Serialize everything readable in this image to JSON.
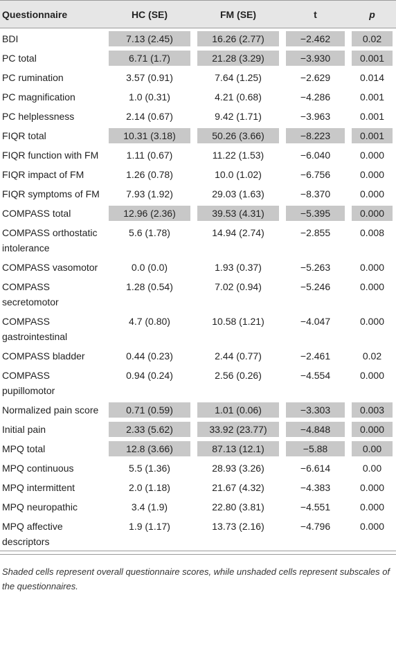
{
  "headers": [
    "Questionnaire",
    "HC (SE)",
    "FM (SE)",
    "t",
    "p"
  ],
  "rows": [
    {
      "q": "BDI",
      "hc": "7.13 (2.45)",
      "fm": "16.26 (2.77)",
      "t": "−2.462",
      "p": "0.02",
      "shaded": true
    },
    {
      "q": "PC total",
      "hc": "6.71 (1.7)",
      "fm": "21.28 (3.29)",
      "t": "−3.930",
      "p": "0.001",
      "shaded": true
    },
    {
      "q": "PC rumination",
      "hc": "3.57 (0.91)",
      "fm": "7.64 (1.25)",
      "t": "−2.629",
      "p": "0.014",
      "shaded": false
    },
    {
      "q": "PC magnification",
      "hc": "1.0 (0.31)",
      "fm": "4.21 (0.68)",
      "t": "−4.286",
      "p": "0.001",
      "shaded": false
    },
    {
      "q": "PC helplessness",
      "hc": "2.14 (0.67)",
      "fm": "9.42 (1.71)",
      "t": "−3.963",
      "p": "0.001",
      "shaded": false
    },
    {
      "q": "FIQR total",
      "hc": "10.31 (3.18)",
      "fm": "50.26 (3.66)",
      "t": "−8.223",
      "p": "0.001",
      "shaded": true
    },
    {
      "q": "FIQR function with FM",
      "hc": "1.11 (0.67)",
      "fm": "11.22 (1.53)",
      "t": "−6.040",
      "p": "0.000",
      "shaded": false
    },
    {
      "q": "FIQR impact of FM",
      "hc": "1.26 (0.78)",
      "fm": "10.0 (1.02)",
      "t": "−6.756",
      "p": "0.000",
      "shaded": false
    },
    {
      "q": "FIQR symptoms of FM",
      "hc": "7.93 (1.92)",
      "fm": "29.03 (1.63)",
      "t": "−8.370",
      "p": "0.000",
      "shaded": false
    },
    {
      "q": "COMPASS total",
      "hc": "12.96 (2.36)",
      "fm": "39.53 (4.31)",
      "t": "−5.395",
      "p": "0.000",
      "shaded": true
    },
    {
      "q": "COMPASS orthostatic intolerance",
      "hc": "5.6 (1.78)",
      "fm": "14.94 (2.74)",
      "t": "−2.855",
      "p": "0.008",
      "shaded": false
    },
    {
      "q": "COMPASS vasomotor",
      "hc": "0.0 (0.0)",
      "fm": "1.93 (0.37)",
      "t": "−5.263",
      "p": "0.000",
      "shaded": false
    },
    {
      "q": "COMPASS secretomotor",
      "hc": "1.28 (0.54)",
      "fm": "7.02 (0.94)",
      "t": "−5.246",
      "p": "0.000",
      "shaded": false
    },
    {
      "q": "COMPASS gastrointestinal",
      "hc": "4.7 (0.80)",
      "fm": "10.58 (1.21)",
      "t": "−4.047",
      "p": "0.000",
      "shaded": false
    },
    {
      "q": "COMPASS bladder",
      "hc": "0.44 (0.23)",
      "fm": "2.44 (0.77)",
      "t": "−2.461",
      "p": "0.02",
      "shaded": false
    },
    {
      "q": "COMPASS pupillomotor",
      "hc": "0.94 (0.24)",
      "fm": "2.56 (0.26)",
      "t": "−4.554",
      "p": "0.000",
      "shaded": false
    },
    {
      "q": "Normalized pain score",
      "hc": "0.71 (0.59)",
      "fm": "1.01 (0.06)",
      "t": "−3.303",
      "p": "0.003",
      "shaded": true
    },
    {
      "q": "Initial pain",
      "hc": "2.33 (5.62)",
      "fm": "33.92 (23.77)",
      "t": "−4.848",
      "p": "0.000",
      "shaded": true
    },
    {
      "q": "MPQ total",
      "hc": "12.8 (3.66)",
      "fm": "87.13 (12.1)",
      "t": "−5.88",
      "p": "0.00",
      "shaded": true
    },
    {
      "q": "MPQ continuous",
      "hc": "5.5 (1.36)",
      "fm": "28.93 (3.26)",
      "t": "−6.614",
      "p": "0.00",
      "shaded": false
    },
    {
      "q": "MPQ intermittent",
      "hc": "2.0 (1.18)",
      "fm": "21.67 (4.32)",
      "t": "−4.383",
      "p": "0.000",
      "shaded": false
    },
    {
      "q": "MPQ neuropathic",
      "hc": "3.4 (1.9)",
      "fm": "22.80 (3.81)",
      "t": "−4.551",
      "p": "0.000",
      "shaded": false
    },
    {
      "q": "MPQ affective descriptors",
      "hc": "1.9 (1.17)",
      "fm": "13.73 (2.16)",
      "t": "−4.796",
      "p": "0.000",
      "shaded": false
    }
  ],
  "caption": "Shaded cells represent overall questionnaire scores, while unshaded cells represent subscales of the questionnaires.",
  "colors": {
    "header_bg": "#e6e6e6",
    "shade": "#c8c8c8",
    "rule": "#9a9a9a"
  }
}
